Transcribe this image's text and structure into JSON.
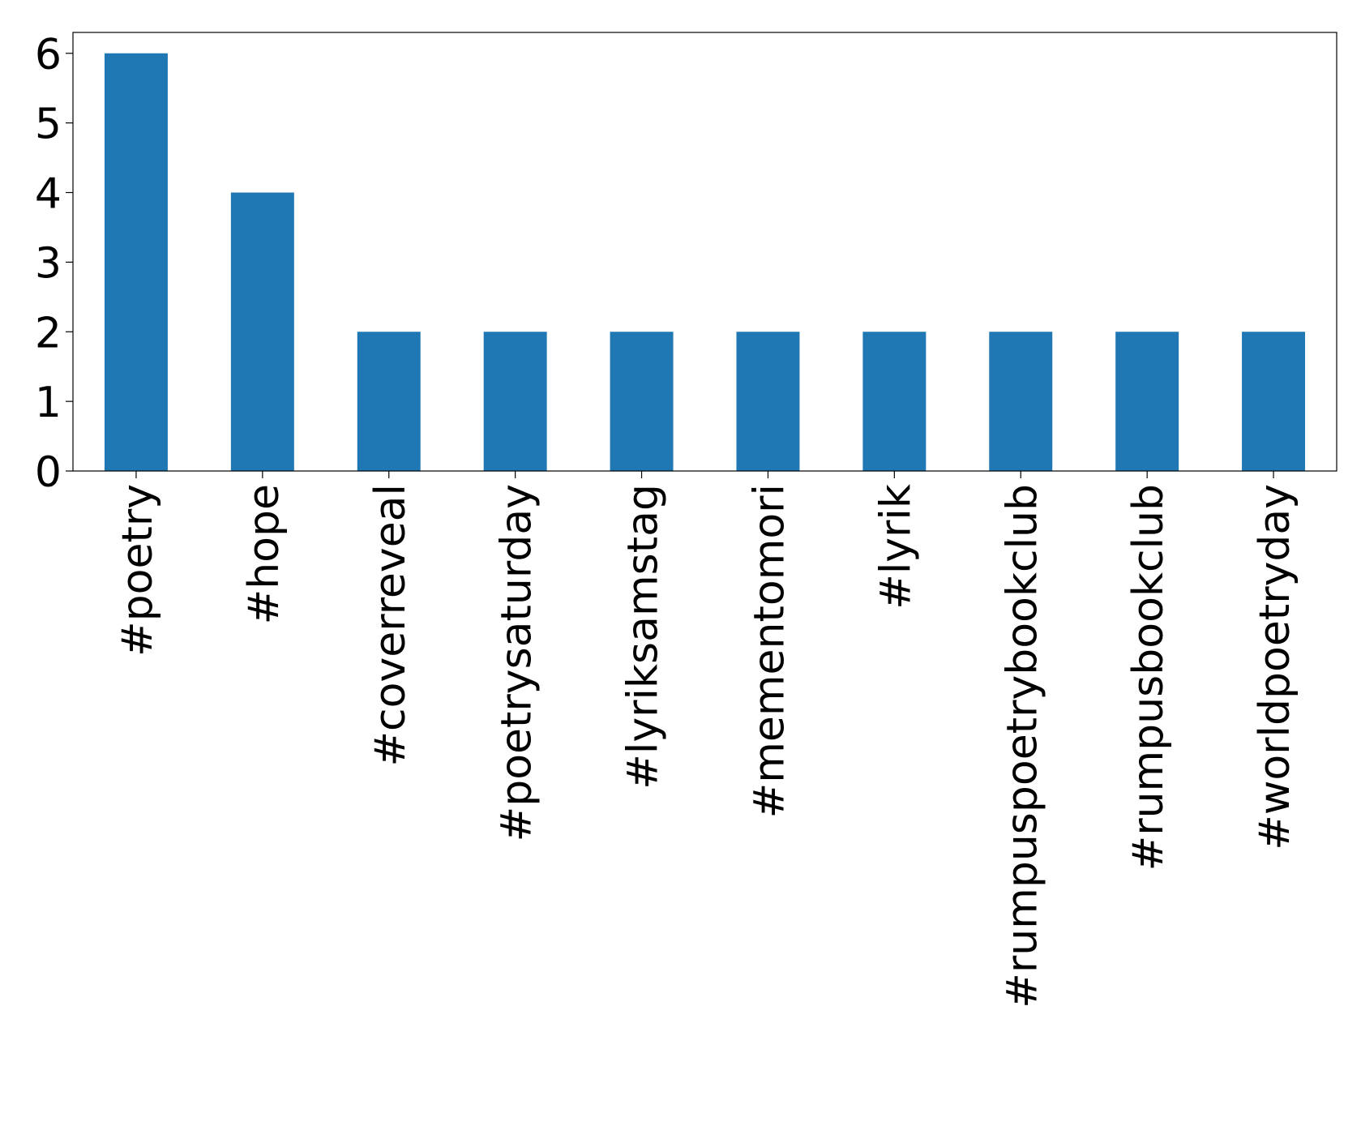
{
  "chart_data": {
    "type": "bar",
    "categories": [
      "#poetry",
      "#hope",
      "#coverreveal",
      "#poetrysaturday",
      "#lyriksamstag",
      "#mementomori",
      "#lyrik",
      "#rumpuspoetrybookclub",
      "#rumpusbookclub",
      "#worldpoetryday"
    ],
    "values": [
      6,
      4,
      2,
      2,
      2,
      2,
      2,
      2,
      2,
      2
    ],
    "color": "#1f77b4",
    "ylim": [
      0,
      6.3
    ],
    "yticks": [
      0,
      1,
      2,
      3,
      4,
      5,
      6
    ]
  }
}
